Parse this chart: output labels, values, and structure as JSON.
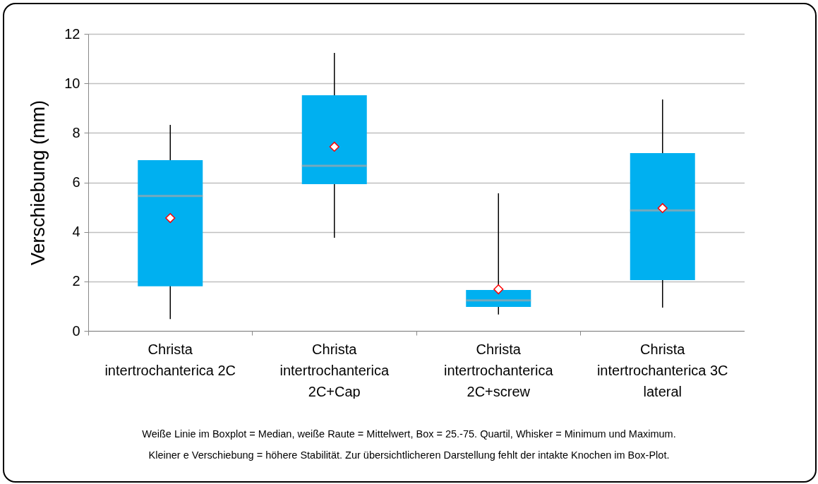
{
  "chart_data": {
    "type": "box",
    "ylabel": "Verschiebung (mm)",
    "categories": [
      "Christa intertrochanterica 2C",
      "Christa intertrochanterica 2C+Cap",
      "Christa intertrochanterica 2C+screw",
      "Christa intertrochanterica 3C lateral"
    ],
    "boxes": [
      {
        "low": 0.48,
        "q1": 1.8,
        "median": 5.45,
        "q3": 6.9,
        "high": 8.32,
        "mean": 4.56
      },
      {
        "low": 3.76,
        "q1": 5.93,
        "median": 6.67,
        "q3": 9.52,
        "high": 11.23,
        "mean": 7.44
      },
      {
        "low": 0.66,
        "q1": 0.97,
        "median": 1.23,
        "q3": 1.65,
        "high": 5.56,
        "mean": 1.68
      },
      {
        "low": 0.94,
        "q1": 2.05,
        "median": 4.87,
        "q3": 7.18,
        "high": 9.35,
        "mean": 4.96
      }
    ],
    "color": "#00b0f0",
    "ylim": [
      0,
      12
    ],
    "yticks": [
      0,
      2,
      4,
      6,
      8,
      10,
      12
    ],
    "grid": "y",
    "marker": "diamond",
    "annotations": [
      "Weiße Linie im Boxplot = Median, weiße Raute = Mittelwert, Box = 25.-75. Quartil, Whisker = Minimum und Maximum.",
      "Kleiner e Verschiebung = höhere Stabilität. Zur übersichtlicheren Darstellung fehlt der intakte Knochen im Box-Plot."
    ]
  }
}
